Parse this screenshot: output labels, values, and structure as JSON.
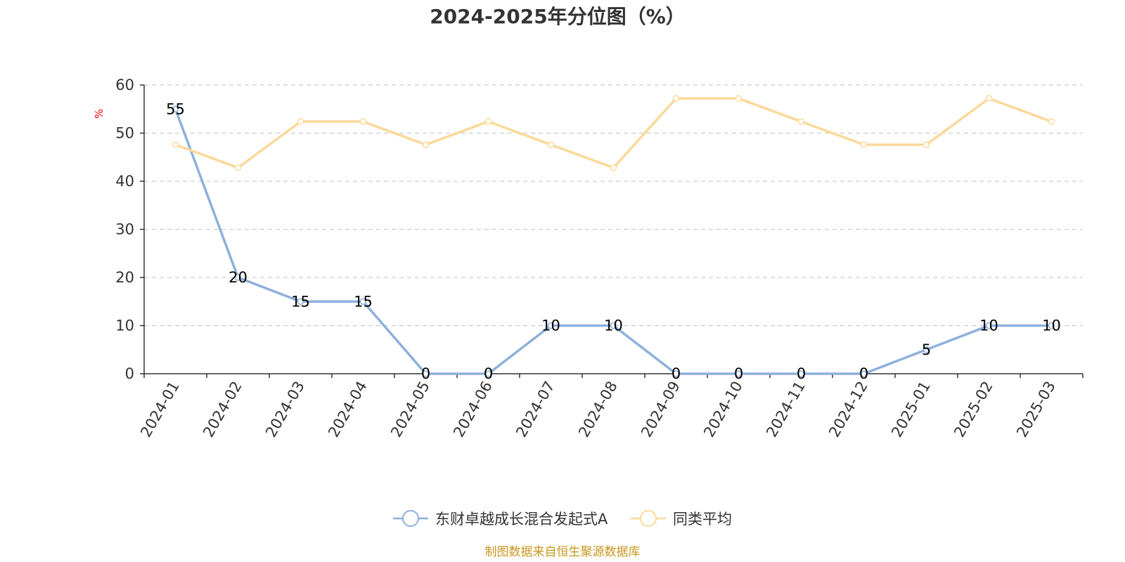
{
  "chart_data": {
    "type": "line",
    "title": "2024-2025年分位图（%）",
    "ylabel": "%",
    "ylim": [
      0,
      60
    ],
    "yticks": [
      0,
      10,
      20,
      30,
      40,
      50,
      60
    ],
    "grid": true,
    "legend_position": "bottom",
    "categories": [
      "2024-01",
      "2024-02",
      "2024-03",
      "2024-04",
      "2024-05",
      "2024-06",
      "2024-07",
      "2024-08",
      "2024-09",
      "2024-10",
      "2024-11",
      "2024-12",
      "2025-01",
      "2025-02",
      "2025-03"
    ],
    "series": [
      {
        "name": "东财卓越成长混合发起式A",
        "color": "#8eb0dc",
        "values": [
          55,
          20,
          15,
          15,
          0,
          0,
          10,
          10,
          0,
          0,
          0,
          0,
          5,
          10,
          10
        ],
        "show_labels": true
      },
      {
        "name": "同类平均",
        "color": "#fbd99a",
        "values": [
          47.6,
          42.8,
          52.4,
          52.4,
          47.6,
          52.4,
          47.6,
          42.8,
          57.2,
          57.2,
          52.4,
          47.6,
          47.6,
          57.2,
          52.4
        ],
        "show_labels": false
      }
    ],
    "source": "制图数据来自恒生聚源数据库"
  }
}
